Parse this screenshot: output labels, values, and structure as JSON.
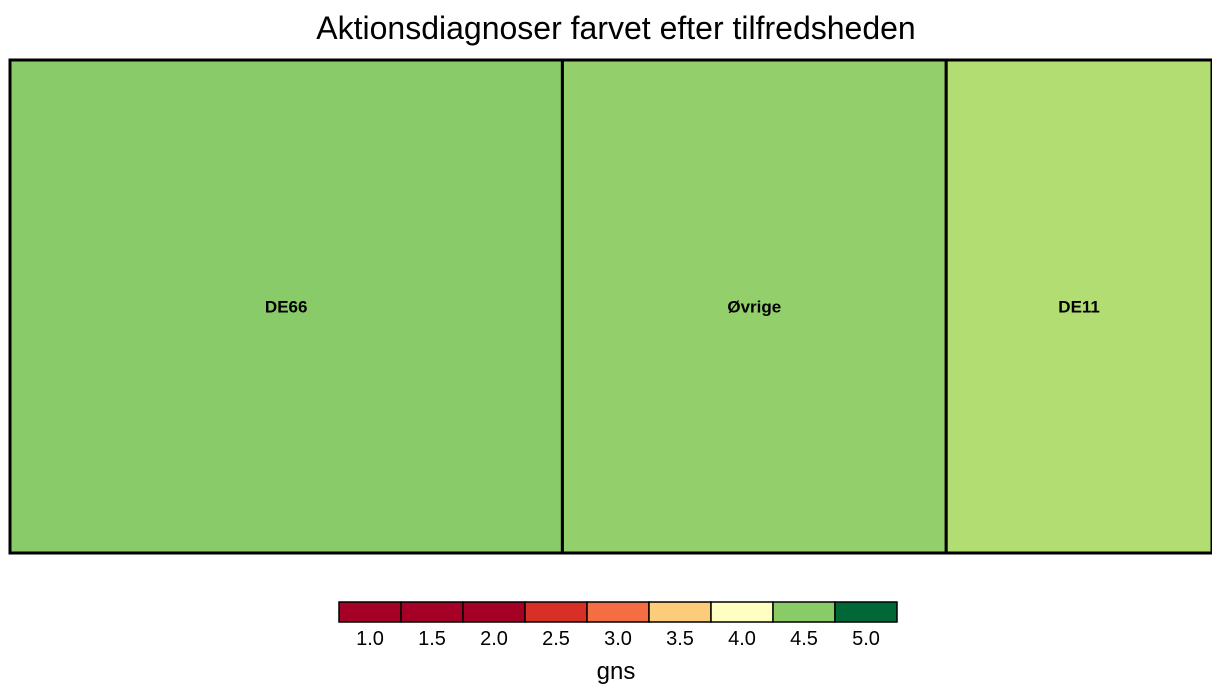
{
  "chart_data": {
    "type": "treemap",
    "title": "Aktionsdiagnoser farvet efter tilfredsheden",
    "tiles": [
      {
        "label": "DE66",
        "size": 557,
        "gns": 4.45,
        "color": "#89cb68"
      },
      {
        "label": "Øvrige",
        "size": 387,
        "gns": 4.5,
        "color": "#93cf6b"
      },
      {
        "label": "DE11",
        "size": 268,
        "gns": 4.6,
        "color": "#b2dd73"
      }
    ],
    "legend": {
      "title": "gns",
      "ticks": [
        "1.0",
        "1.5",
        "2.0",
        "2.5",
        "3.0",
        "3.5",
        "4.0",
        "4.5",
        "5.0"
      ],
      "colors": [
        "#a50026",
        "#a50026",
        "#a50026",
        "#d73027",
        "#f46d43",
        "#fdcc7a",
        "#ffffc2",
        "#88cb67",
        "#006837"
      ]
    }
  }
}
